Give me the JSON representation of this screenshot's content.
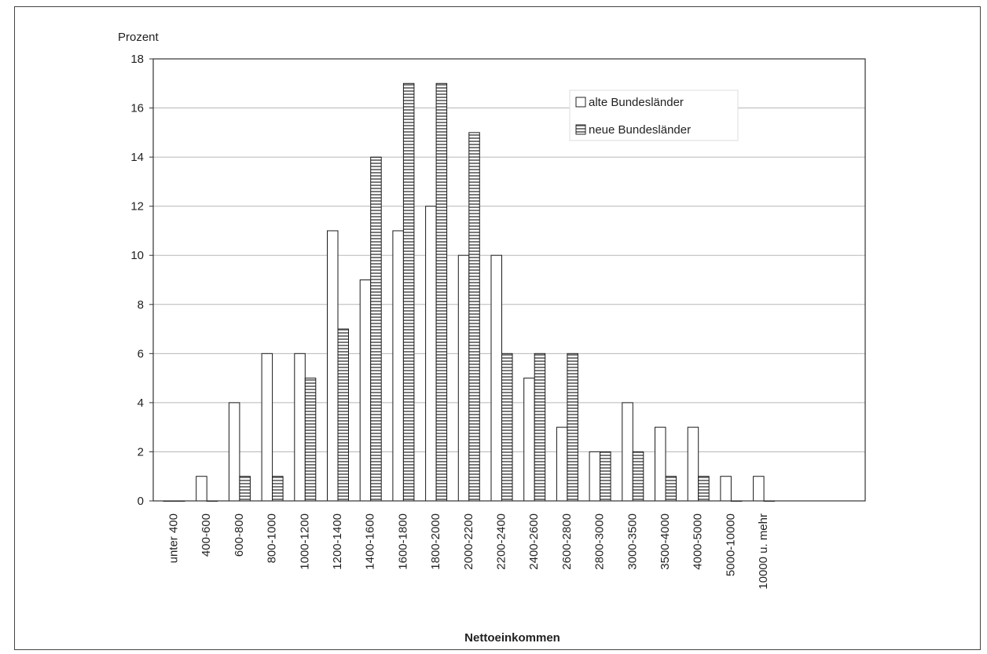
{
  "chart_data": {
    "type": "bar",
    "ylabel": "Prozent",
    "xlabel": "Nettoeinkommen",
    "ylim": [
      0,
      18
    ],
    "yticks": [
      0,
      2,
      4,
      6,
      8,
      10,
      12,
      14,
      16,
      18
    ],
    "grid": true,
    "legend_position": "top-right",
    "categories": [
      "unter 400",
      "400-600",
      "600-800",
      "800-1000",
      "1000-1200",
      "1200-1400",
      "1400-1600",
      "1600-1800",
      "1800-2000",
      "2000-2200",
      "2200-2400",
      "2400-2600",
      "2600-2800",
      "2800-3000",
      "3000-3500",
      "3500-4000",
      "4000-5000",
      "5000-10000",
      "10000 u. mehr"
    ],
    "series": [
      {
        "name": "alte Bundesländer",
        "color": "#ffffff",
        "values": [
          0,
          1,
          4,
          6,
          6,
          11,
          9,
          11,
          12,
          10,
          10,
          5,
          3,
          2,
          4,
          3,
          3,
          1,
          1
        ]
      },
      {
        "name": "neue Bundesländer",
        "color": "#d8d8d8",
        "pattern": "horizontal-stripes",
        "values": [
          0,
          0,
          1,
          1,
          5,
          7,
          14,
          17,
          17,
          15,
          6,
          6,
          6,
          2,
          2,
          1,
          1,
          0,
          0
        ]
      }
    ]
  }
}
